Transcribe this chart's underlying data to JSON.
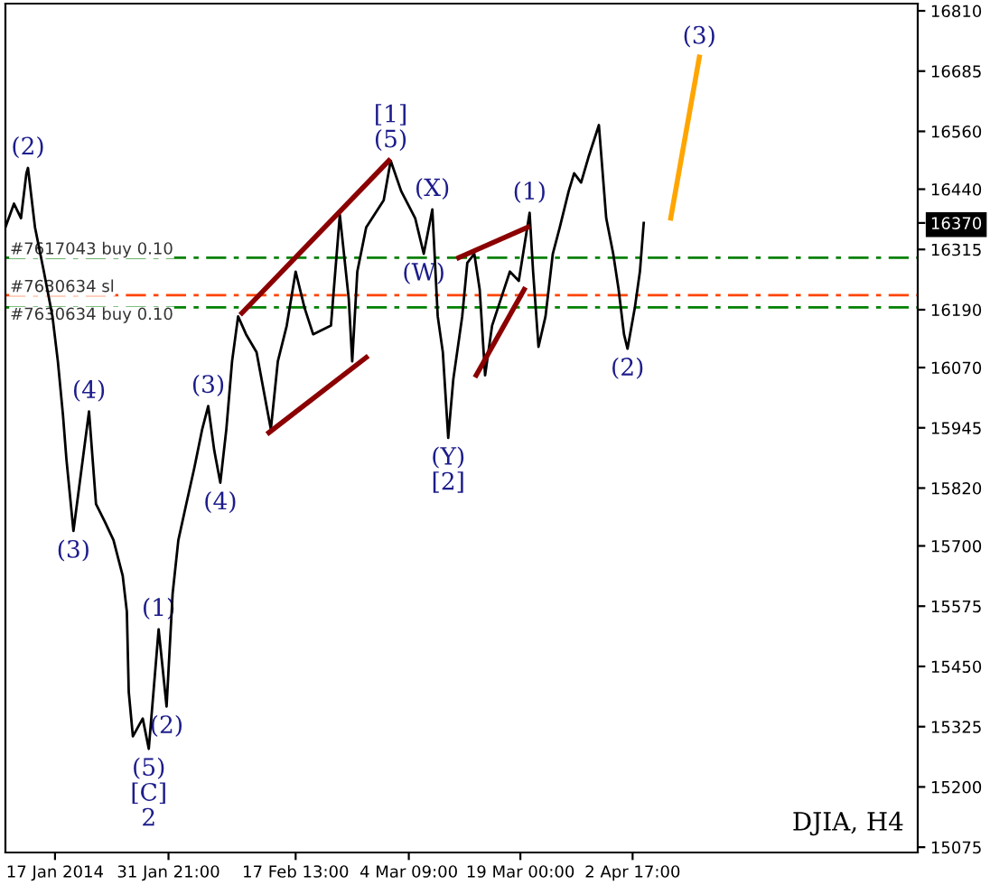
{
  "chart_data": {
    "type": "line",
    "xlim": [
      "2014-01-10T12:00",
      "2014-05-10T02:00"
    ],
    "ylim": [
      15064,
      16825
    ],
    "xticks": [
      {
        "value": "2014-01-17T00:00",
        "label": "17 Jan 2014"
      },
      {
        "value": "2014-01-31T21:00",
        "label": "31 Jan 21:00"
      },
      {
        "value": "2014-02-17T13:00",
        "label": "17 Feb 13:00"
      },
      {
        "value": "2014-03-04T09:00",
        "label": "4 Mar 09:00"
      },
      {
        "value": "2014-03-19T00:00",
        "label": "19 Mar 00:00"
      },
      {
        "value": "2014-04-02T17:00",
        "label": "2 Apr 17:00"
      }
    ],
    "yticks": [
      15075,
      15200,
      15325,
      15450,
      15575,
      15700,
      15820,
      15945,
      16070,
      16190,
      16315,
      16370,
      16440,
      16560,
      16685,
      16810
    ],
    "grid": false,
    "legend": false,
    "series": [
      {
        "color": "#000000",
        "x": [
          "2014-01-10T12:00",
          "2014-01-11T15:00",
          "2014-01-12T13:00",
          "2014-01-13T06:00",
          "2014-01-13T11:00",
          "2014-01-14T09:00",
          "2014-01-15T13:00",
          "2014-01-16T16:00",
          "2014-01-17T09:00",
          "2014-01-18T01:00",
          "2014-01-18T12:00",
          "2014-01-19T10:00",
          "2014-01-21T11:00",
          "2014-01-22T09:00",
          "2014-01-23T13:00",
          "2014-01-24T16:00",
          "2014-01-25T21:00",
          "2014-01-26T10:00",
          "2014-01-26T16:00",
          "2014-01-27T05:00",
          "2014-01-28T12:00",
          "2014-01-29T07:00",
          "2014-01-30T14:00",
          "2014-01-31T15:00",
          "2014-02-01T10:00",
          "2014-02-02T04:00",
          "2014-02-03T05:00",
          "2014-02-04T06:00",
          "2014-02-05T07:00",
          "2014-02-06T02:00",
          "2014-02-06T21:00",
          "2014-02-07T16:00",
          "2014-02-08T11:00",
          "2014-02-09T05:00",
          "2014-02-10T00:00",
          "2014-02-11T01:00",
          "2014-02-12T10:00",
          "2014-02-14T07:00",
          "2014-02-15T05:00",
          "2014-02-16T09:00",
          "2014-02-17T13:00",
          "2014-02-18T17:00",
          "2014-02-19T20:00",
          "2014-02-22T04:00",
          "2014-02-23T08:00",
          "2014-02-24T12:00",
          "2014-02-24T23:00",
          "2014-02-25T15:00",
          "2014-02-26T19:00",
          "2014-03-01T02:00",
          "2014-03-02T00:00",
          "2014-03-03T09:00",
          "2014-03-05T05:00",
          "2014-03-06T08:00",
          "2014-03-07T11:00",
          "2014-03-08T04:00",
          "2014-03-08T20:00",
          "2014-03-09T13:00",
          "2014-03-10T05:00",
          "2014-03-11T09:00",
          "2014-03-12T01:00",
          "2014-03-12T23:00",
          "2014-03-13T16:00",
          "2014-03-14T09:00",
          "2014-03-15T07:00",
          "2014-03-16T11:00",
          "2014-03-17T15:00",
          "2014-03-18T19:00",
          "2014-03-20T05:00",
          "2014-03-20T16:00",
          "2014-03-21T09:00",
          "2014-03-22T07:00",
          "2014-03-23T06:00",
          "2014-03-24T04:00",
          "2014-03-25T08:00",
          "2014-03-26T01:00",
          "2014-03-26T23:00",
          "2014-03-27T22:00",
          "2014-03-29T07:00",
          "2014-03-30T06:00",
          "2014-03-31T04:00",
          "2014-03-31T21:00",
          "2014-04-01T14:00",
          "2014-04-02T01:00",
          "2014-04-03T00:00",
          "2014-04-03T16:00",
          "2014-04-04T04:00"
        ],
        "values": [
          16361,
          16410,
          16380,
          16473,
          16484,
          16361,
          16269,
          16176,
          16083,
          15972,
          15879,
          15731,
          15979,
          15787,
          15750,
          15712,
          15638,
          15564,
          15397,
          15305,
          15342,
          15279,
          15527,
          15367,
          15601,
          15712,
          15787,
          15861,
          15942,
          15990,
          15898,
          15831,
          15942,
          16083,
          16176,
          16139,
          16102,
          15942,
          16083,
          16157,
          16269,
          16194,
          16139,
          16157,
          16387,
          16213,
          16083,
          16269,
          16361,
          16417,
          16499,
          16436,
          16380,
          16306,
          16398,
          16176,
          16102,
          15924,
          16046,
          16176,
          16287,
          16306,
          16232,
          16054,
          16157,
          16213,
          16269,
          16250,
          16391,
          16269,
          16113,
          16176,
          16306,
          16361,
          16436,
          16473,
          16454,
          16506,
          16573,
          16380,
          16306,
          16232,
          16139,
          16109,
          16194,
          16269,
          16370
        ]
      },
      {
        "color": "#8b0000",
        "x": [
          "2014-02-10T12:00",
          "2014-03-01T18:00"
        ],
        "values": [
          16183,
          16499
        ]
      },
      {
        "color": "#8b0000",
        "x": [
          "2014-02-14T01:00",
          "2014-02-26T19:00"
        ],
        "values": [
          15935,
          16091
        ]
      },
      {
        "color": "#8b0000",
        "x": [
          "2014-03-10T22:00",
          "2014-03-19T23:00"
        ],
        "values": [
          16298,
          16361
        ]
      },
      {
        "color": "#8b0000",
        "x": [
          "2014-03-13T05:00",
          "2014-03-19T12:00"
        ],
        "values": [
          16054,
          16232
        ]
      },
      {
        "color": "#ffa500",
        "x": [
          "2014-04-07T17:00",
          "2014-04-11T11:00"
        ],
        "values": [
          16380,
          16714
        ]
      }
    ],
    "ref_lines": [
      {
        "axis": "y",
        "value": 16298,
        "label": "#7617043 buy 0.10",
        "color": "#008000",
        "line_style": "dashed"
      },
      {
        "axis": "y",
        "value": 16220,
        "label": "#7630634 sl",
        "color": "#ff4500",
        "line_style": "dashed"
      },
      {
        "axis": "y",
        "value": 16195,
        "label": "#7630634 buy 0.10",
        "color": "#008000",
        "line_style": "dashed"
      }
    ],
    "annotations": [
      {
        "text": "(2)",
        "x": "2014-01-13T11:00",
        "y": 16484
      },
      {
        "text": "(3)",
        "x": "2014-01-19T10:00",
        "y": 15731
      },
      {
        "text": "(4)",
        "x": "2014-01-21T11:00",
        "y": 15979
      },
      {
        "text": "(5)",
        "x": "2014-01-29T07:00",
        "y": 15279
      },
      {
        "text": "[C]",
        "x": "2014-01-29T07:00",
        "y": 15279
      },
      {
        "text": "2",
        "x": "2014-01-29T07:00",
        "y": 15279
      },
      {
        "text": "(1)",
        "x": "2014-01-30T14:00",
        "y": 15527
      },
      {
        "text": "(2)",
        "x": "2014-01-31T15:00",
        "y": 15367
      },
      {
        "text": "(3)",
        "x": "2014-02-06T02:00",
        "y": 15990
      },
      {
        "text": "(4)",
        "x": "2014-02-07T16:00",
        "y": 15831
      },
      {
        "text": "(5)",
        "x": "2014-03-02T00:00",
        "y": 16499
      },
      {
        "text": "[1]",
        "x": "2014-03-02T00:00",
        "y": 16499
      },
      {
        "text": "(W)",
        "x": "2014-03-06T08:00",
        "y": 16306
      },
      {
        "text": "(X)",
        "x": "2014-03-07T11:00",
        "y": 16398
      },
      {
        "text": "(Y)",
        "x": "2014-03-09T13:00",
        "y": 15924
      },
      {
        "text": "[2]",
        "x": "2014-03-09T13:00",
        "y": 15924
      },
      {
        "text": "(1)",
        "x": "2014-03-20T05:00",
        "y": 16391
      },
      {
        "text": "(2)",
        "x": "2014-04-02T01:00",
        "y": 16109
      },
      {
        "text": "(3)",
        "x": "2014-04-11T11:00",
        "y": 16714
      },
      "DJIA, H4"
    ]
  }
}
